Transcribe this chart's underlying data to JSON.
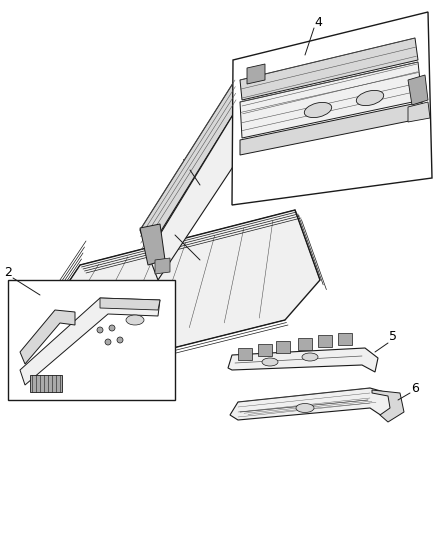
{
  "background_color": "#ffffff",
  "fig_width": 4.38,
  "fig_height": 5.33,
  "dpi": 100,
  "lc": "#1a1a1a",
  "lc_light": "#555555",
  "fill_white": "#ffffff",
  "fill_light": "#f0f0f0",
  "fill_mid": "#d8d8d8",
  "fill_dark": "#aaaaaa",
  "label_fontsize": 9
}
